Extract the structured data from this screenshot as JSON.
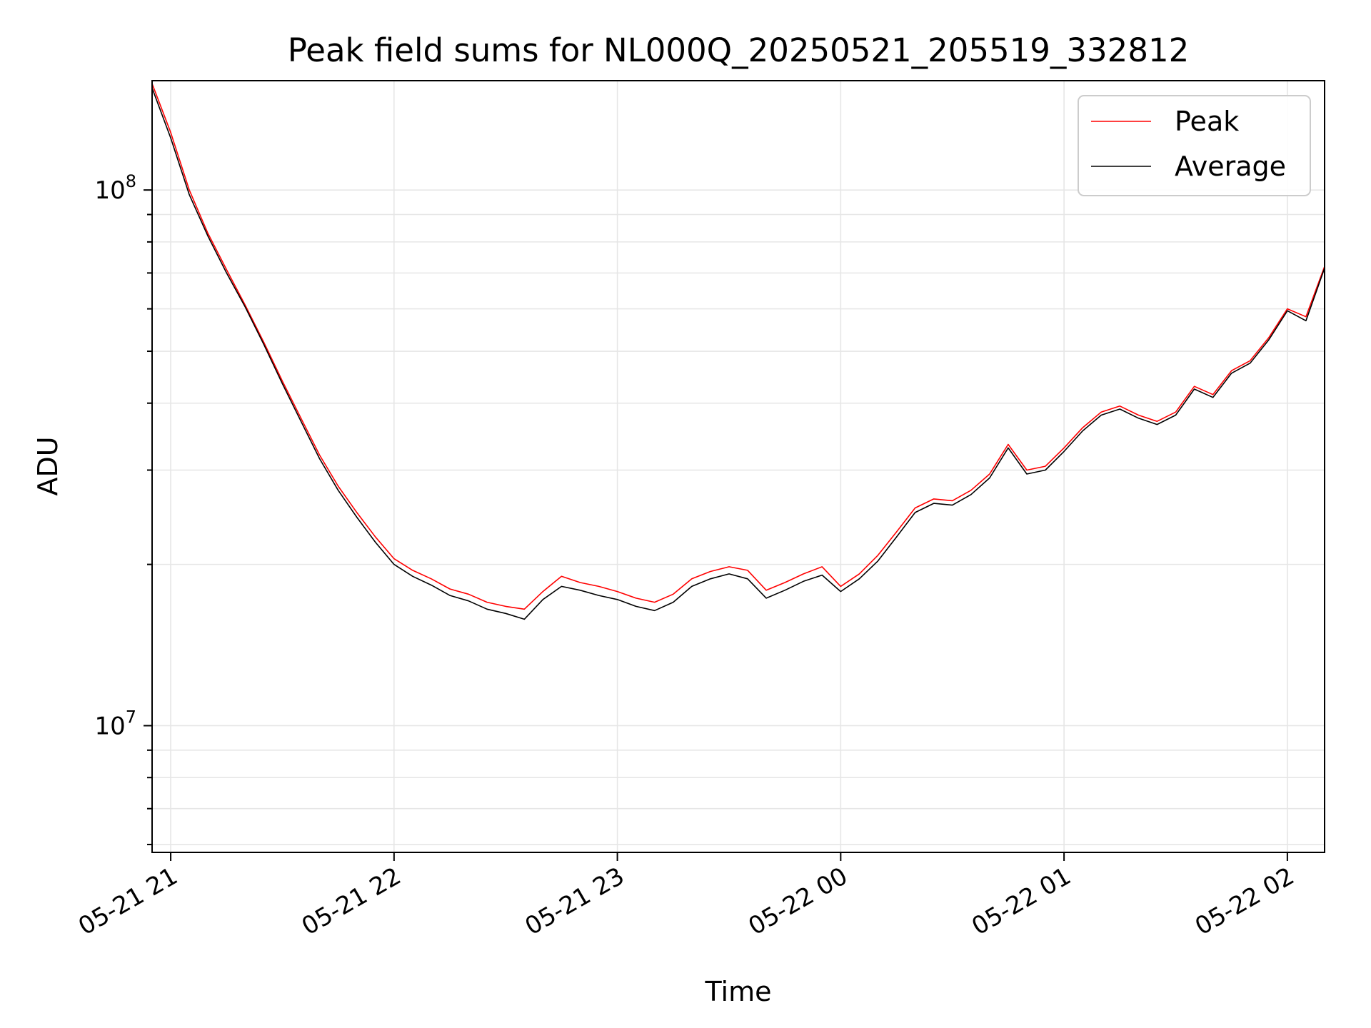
{
  "chart_data": {
    "type": "line",
    "title": "Peak field sums for NL000Q_20250521_205519_332812",
    "xlabel": "Time",
    "ylabel": "ADU",
    "y_scale": "log",
    "x_range": [
      "2025-05-21 20:55",
      "2025-05-22 02:10"
    ],
    "ylim": [
      5800000,
      160000000
    ],
    "x_ticks": [
      "05-21 21",
      "05-21 22",
      "05-21 23",
      "05-22 00",
      "05-22 01",
      "05-22 02"
    ],
    "y_ticks": [
      {
        "base": "10",
        "exp": "7",
        "value": 10000000
      },
      {
        "base": "10",
        "exp": "8",
        "value": 100000000
      }
    ],
    "grid": true,
    "legend_position": "top-right",
    "series": [
      {
        "name": "Peak",
        "color": "#ff0000",
        "x": [
          "2025-05-21 20:55",
          "2025-05-21 21:00",
          "2025-05-21 21:05",
          "2025-05-21 21:10",
          "2025-05-21 21:15",
          "2025-05-21 21:20",
          "2025-05-21 21:25",
          "2025-05-21 21:30",
          "2025-05-21 21:35",
          "2025-05-21 21:40",
          "2025-05-21 21:45",
          "2025-05-21 21:50",
          "2025-05-21 21:55",
          "2025-05-21 22:00",
          "2025-05-21 22:05",
          "2025-05-21 22:10",
          "2025-05-21 22:15",
          "2025-05-21 22:20",
          "2025-05-21 22:25",
          "2025-05-21 22:30",
          "2025-05-21 22:35",
          "2025-05-21 22:40",
          "2025-05-21 22:45",
          "2025-05-21 22:50",
          "2025-05-21 22:55",
          "2025-05-21 23:00",
          "2025-05-21 23:05",
          "2025-05-21 23:10",
          "2025-05-21 23:15",
          "2025-05-21 23:20",
          "2025-05-21 23:25",
          "2025-05-21 23:30",
          "2025-05-21 23:35",
          "2025-05-21 23:40",
          "2025-05-21 23:45",
          "2025-05-21 23:50",
          "2025-05-21 23:55",
          "2025-05-22 00:00",
          "2025-05-22 00:05",
          "2025-05-22 00:10",
          "2025-05-22 00:15",
          "2025-05-22 00:20",
          "2025-05-22 00:25",
          "2025-05-22 00:30",
          "2025-05-22 00:35",
          "2025-05-22 00:40",
          "2025-05-22 00:45",
          "2025-05-22 00:50",
          "2025-05-22 00:55",
          "2025-05-22 01:00",
          "2025-05-22 01:05",
          "2025-05-22 01:10",
          "2025-05-22 01:15",
          "2025-05-22 01:20",
          "2025-05-22 01:25",
          "2025-05-22 01:30",
          "2025-05-22 01:35",
          "2025-05-22 01:40",
          "2025-05-22 01:45",
          "2025-05-22 01:50",
          "2025-05-22 01:55",
          "2025-05-22 02:00",
          "2025-05-22 02:05",
          "2025-05-22 02:10"
        ],
        "y": [
          158000000,
          128000000,
          100000000,
          83000000,
          71000000,
          61000000,
          52000000,
          44000000,
          37500000,
          32000000,
          28000000,
          25000000,
          22500000,
          20500000,
          19500000,
          18800000,
          18000000,
          17600000,
          17000000,
          16700000,
          16500000,
          17800000,
          19000000,
          18500000,
          18200000,
          17800000,
          17300000,
          17000000,
          17600000,
          18800000,
          19400000,
          19800000,
          19500000,
          17900000,
          18500000,
          19200000,
          19800000,
          18200000,
          19200000,
          20800000,
          23000000,
          25500000,
          26500000,
          26300000,
          27500000,
          29500000,
          33500000,
          30000000,
          30500000,
          33000000,
          36000000,
          38500000,
          39500000,
          38000000,
          37000000,
          38500000,
          43000000,
          41500000,
          46000000,
          48000000,
          53000000,
          60000000,
          58000000,
          72000000
        ]
      },
      {
        "name": "Average",
        "color": "#000000",
        "x": [
          "2025-05-21 20:55",
          "2025-05-21 21:00",
          "2025-05-21 21:05",
          "2025-05-21 21:10",
          "2025-05-21 21:15",
          "2025-05-21 21:20",
          "2025-05-21 21:25",
          "2025-05-21 21:30",
          "2025-05-21 21:35",
          "2025-05-21 21:40",
          "2025-05-21 21:45",
          "2025-05-21 21:50",
          "2025-05-21 21:55",
          "2025-05-21 22:00",
          "2025-05-21 22:05",
          "2025-05-21 22:10",
          "2025-05-21 22:15",
          "2025-05-21 22:20",
          "2025-05-21 22:25",
          "2025-05-21 22:30",
          "2025-05-21 22:35",
          "2025-05-21 22:40",
          "2025-05-21 22:45",
          "2025-05-21 22:50",
          "2025-05-21 22:55",
          "2025-05-21 23:00",
          "2025-05-21 23:05",
          "2025-05-21 23:10",
          "2025-05-21 23:15",
          "2025-05-21 23:20",
          "2025-05-21 23:25",
          "2025-05-21 23:30",
          "2025-05-21 23:35",
          "2025-05-21 23:40",
          "2025-05-21 23:45",
          "2025-05-21 23:50",
          "2025-05-21 23:55",
          "2025-05-22 00:00",
          "2025-05-22 00:05",
          "2025-05-22 00:10",
          "2025-05-22 00:15",
          "2025-05-22 00:20",
          "2025-05-22 00:25",
          "2025-05-22 00:30",
          "2025-05-22 00:35",
          "2025-05-22 00:40",
          "2025-05-22 00:45",
          "2025-05-22 00:50",
          "2025-05-22 00:55",
          "2025-05-22 01:00",
          "2025-05-22 01:05",
          "2025-05-22 01:10",
          "2025-05-22 01:15",
          "2025-05-22 01:20",
          "2025-05-22 01:25",
          "2025-05-22 01:30",
          "2025-05-22 01:35",
          "2025-05-22 01:40",
          "2025-05-22 01:45",
          "2025-05-22 01:50",
          "2025-05-22 01:55",
          "2025-05-22 02:00",
          "2025-05-22 02:05",
          "2025-05-22 02:10"
        ],
        "y": [
          155000000,
          125000000,
          98000000,
          82000000,
          70000000,
          60500000,
          51500000,
          43500000,
          37000000,
          31500000,
          27500000,
          24500000,
          22000000,
          20000000,
          19000000,
          18300000,
          17500000,
          17100000,
          16500000,
          16200000,
          15800000,
          17200000,
          18200000,
          17900000,
          17500000,
          17200000,
          16700000,
          16400000,
          17000000,
          18200000,
          18800000,
          19200000,
          18800000,
          17300000,
          17900000,
          18600000,
          19100000,
          17800000,
          18800000,
          20300000,
          22500000,
          25000000,
          26000000,
          25800000,
          27000000,
          29000000,
          33000000,
          29500000,
          30000000,
          32500000,
          35500000,
          38000000,
          39000000,
          37500000,
          36500000,
          38000000,
          42500000,
          41000000,
          45500000,
          47500000,
          52500000,
          59500000,
          57000000,
          71500000
        ]
      }
    ]
  }
}
